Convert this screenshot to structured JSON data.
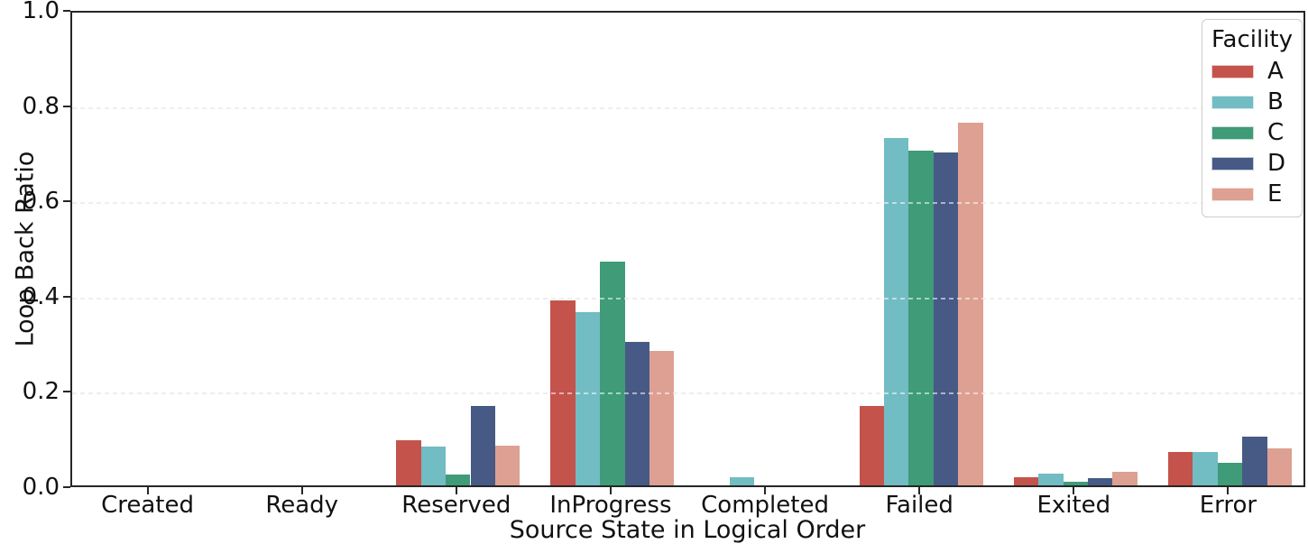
{
  "chart_data": {
    "type": "bar",
    "title": "",
    "xlabel": "Source State in Logical Order",
    "ylabel": "Loop Back Ratio",
    "categories": [
      "Created",
      "Ready",
      "Reserved",
      "InProgress",
      "Completed",
      "Failed",
      "Exited",
      "Error"
    ],
    "series": [
      {
        "name": "A",
        "color": "#c4534c",
        "values": [
          0,
          0,
          0.094,
          0.389,
          0,
          0.166,
          0.018,
          0.071
        ]
      },
      {
        "name": "B",
        "color": "#72bcc3",
        "values": [
          0,
          0,
          0.081,
          0.363,
          0.018,
          0.73,
          0.024,
          0.071
        ]
      },
      {
        "name": "C",
        "color": "#3f9b78",
        "values": [
          0,
          0,
          0.022,
          0.47,
          0,
          0.702,
          0.008,
          0.048
        ]
      },
      {
        "name": "D",
        "color": "#475a85",
        "values": [
          0,
          0,
          0.166,
          0.302,
          0,
          0.699,
          0.015,
          0.103
        ]
      },
      {
        "name": "E",
        "color": "#dda092",
        "values": [
          0,
          0,
          0.083,
          0.283,
          0,
          0.762,
          0.029,
          0.078
        ]
      }
    ],
    "legend": {
      "title": "Facility",
      "position": "upper right"
    },
    "ylim": [
      0,
      1.0
    ],
    "yticks": [
      "0.0",
      "0.2",
      "0.4",
      "0.6",
      "0.8",
      "1.0"
    ],
    "grid": "horizontal dashed at 0.2 intervals",
    "axis_color": "#262626",
    "grid_color": "#d9d9d9"
  }
}
